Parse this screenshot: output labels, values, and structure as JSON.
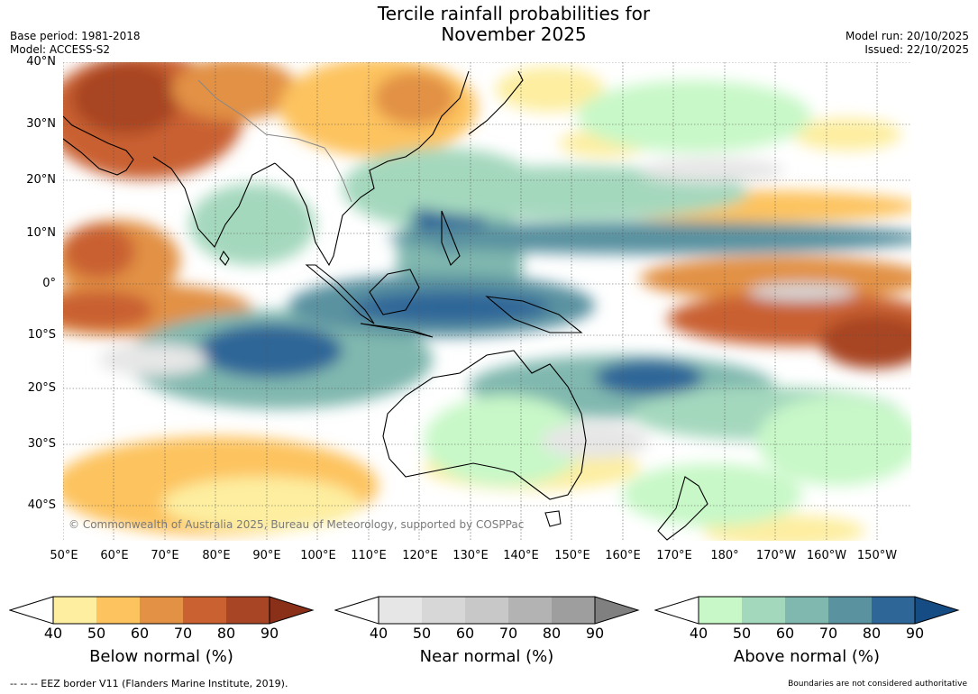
{
  "title": {
    "line1": "Tercile rainfall probabilities for",
    "line2": "November 2025"
  },
  "meta": {
    "base_period": "Base period: 1981-2018",
    "model": "Model: ACCESS-S2",
    "model_run": "Model run: 20/10/2025",
    "issued": "Issued: 22/10/2025"
  },
  "map": {
    "lat_labels": [
      "40°N",
      "30°N",
      "20°N",
      "10°N",
      "0°",
      "10°S",
      "20°S",
      "30°S",
      "40°S"
    ],
    "lon_labels": [
      "50°E",
      "60°E",
      "70°E",
      "80°E",
      "90°E",
      "100°E",
      "110°E",
      "120°E",
      "130°E",
      "140°E",
      "150°E",
      "160°E",
      "170°E",
      "180°",
      "170°W",
      "160°W",
      "150°W"
    ],
    "copyright": "© Commonwealth of Australia 2025, Bureau of Meteorology, supported by COSPPac"
  },
  "legend": {
    "below": {
      "title": "Below normal (%)",
      "ticks": [
        "40",
        "50",
        "60",
        "70",
        "80",
        "90"
      ],
      "colors": [
        "#fdeea0",
        "#fdc35e",
        "#e29145",
        "#c96131",
        "#a84524",
        "#8a3018"
      ]
    },
    "near": {
      "title": "Near normal (%)",
      "ticks": [
        "40",
        "50",
        "60",
        "70",
        "80",
        "90"
      ],
      "colors": [
        "#e6e6e6",
        "#d7d7d7",
        "#c8c8c8",
        "#b3b3b3",
        "#9e9e9e",
        "#808080"
      ]
    },
    "above": {
      "title": "Above normal (%)",
      "ticks": [
        "40",
        "50",
        "60",
        "70",
        "80",
        "90"
      ],
      "colors": [
        "#c8f8c8",
        "#a4d8bd",
        "#80b8af",
        "#5a92a0",
        "#2f6698",
        "#164c84"
      ]
    }
  },
  "footer": {
    "eez_note": "--  --  -- EEZ border V11 (Flanders Marine Institute, 2019).",
    "boundaries_note": "Boundaries are not considered authoritative"
  }
}
